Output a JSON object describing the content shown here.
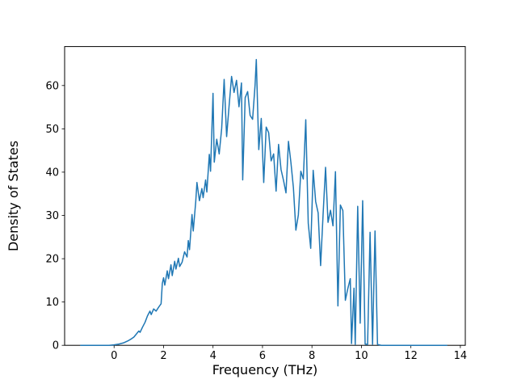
{
  "chart_data": {
    "type": "line",
    "title": "",
    "xlabel": "Frequency (THz)",
    "ylabel": "Density of States",
    "xlim": [
      -2.0,
      14.2
    ],
    "ylim": [
      0,
      69
    ],
    "xticks": [
      0,
      2,
      4,
      6,
      8,
      10,
      12,
      14
    ],
    "yticks": [
      0,
      10,
      20,
      30,
      40,
      50,
      60
    ],
    "grid": false,
    "legend": "none",
    "line_color": "#1f77b4",
    "axes_color": "#000000",
    "background_color": "#ffffff",
    "points": [
      [
        -1.35,
        0
      ],
      [
        -1.0,
        0
      ],
      [
        -0.6,
        0
      ],
      [
        -0.2,
        0
      ],
      [
        0.0,
        0.1
      ],
      [
        0.2,
        0.3
      ],
      [
        0.4,
        0.6
      ],
      [
        0.55,
        1.0
      ],
      [
        0.7,
        1.5
      ],
      [
        0.8,
        1.9
      ],
      [
        0.9,
        2.6
      ],
      [
        1.0,
        3.3
      ],
      [
        1.05,
        3.0
      ],
      [
        1.15,
        4.2
      ],
      [
        1.25,
        5.3
      ],
      [
        1.35,
        6.8
      ],
      [
        1.45,
        7.9
      ],
      [
        1.5,
        7.1
      ],
      [
        1.6,
        8.4
      ],
      [
        1.7,
        7.9
      ],
      [
        1.8,
        8.8
      ],
      [
        1.9,
        9.6
      ],
      [
        1.95,
        14.3
      ],
      [
        2.0,
        15.6
      ],
      [
        2.05,
        13.9
      ],
      [
        2.15,
        17.2
      ],
      [
        2.2,
        15.4
      ],
      [
        2.3,
        18.6
      ],
      [
        2.35,
        16.1
      ],
      [
        2.45,
        19.4
      ],
      [
        2.5,
        17.6
      ],
      [
        2.6,
        20.1
      ],
      [
        2.65,
        18.2
      ],
      [
        2.75,
        19.2
      ],
      [
        2.85,
        21.6
      ],
      [
        2.95,
        20.4
      ],
      [
        3.0,
        24.2
      ],
      [
        3.05,
        22.1
      ],
      [
        3.15,
        30.2
      ],
      [
        3.2,
        26.4
      ],
      [
        3.3,
        33.1
      ],
      [
        3.35,
        37.6
      ],
      [
        3.45,
        33.4
      ],
      [
        3.55,
        36.2
      ],
      [
        3.6,
        34.1
      ],
      [
        3.7,
        38.2
      ],
      [
        3.75,
        35.4
      ],
      [
        3.85,
        44.1
      ],
      [
        3.9,
        40.2
      ],
      [
        4.0,
        58.2
      ],
      [
        4.05,
        42.3
      ],
      [
        4.15,
        47.6
      ],
      [
        4.25,
        44.2
      ],
      [
        4.35,
        50.1
      ],
      [
        4.45,
        61.4
      ],
      [
        4.55,
        48.2
      ],
      [
        4.65,
        55.3
      ],
      [
        4.75,
        62.1
      ],
      [
        4.85,
        58.4
      ],
      [
        4.95,
        61.2
      ],
      [
        5.05,
        55.1
      ],
      [
        5.15,
        60.6
      ],
      [
        5.2,
        38.2
      ],
      [
        5.3,
        57.2
      ],
      [
        5.4,
        58.6
      ],
      [
        5.5,
        53.1
      ],
      [
        5.6,
        52.2
      ],
      [
        5.7,
        60.1
      ],
      [
        5.75,
        66.0
      ],
      [
        5.85,
        45.2
      ],
      [
        5.95,
        52.4
      ],
      [
        6.05,
        37.6
      ],
      [
        6.15,
        50.4
      ],
      [
        6.25,
        49.1
      ],
      [
        6.35,
        42.6
      ],
      [
        6.45,
        44.2
      ],
      [
        6.55,
        35.6
      ],
      [
        6.65,
        46.4
      ],
      [
        6.75,
        40.6
      ],
      [
        6.85,
        38.1
      ],
      [
        6.95,
        35.2
      ],
      [
        7.05,
        47.1
      ],
      [
        7.15,
        42.2
      ],
      [
        7.25,
        36.4
      ],
      [
        7.35,
        26.6
      ],
      [
        7.45,
        30.1
      ],
      [
        7.55,
        40.2
      ],
      [
        7.65,
        38.4
      ],
      [
        7.75,
        52.1
      ],
      [
        7.85,
        28.2
      ],
      [
        7.95,
        22.4
      ],
      [
        8.05,
        40.4
      ],
      [
        8.15,
        33.2
      ],
      [
        8.25,
        30.6
      ],
      [
        8.35,
        18.4
      ],
      [
        8.45,
        30.2
      ],
      [
        8.55,
        41.1
      ],
      [
        8.65,
        28.4
      ],
      [
        8.75,
        31.2
      ],
      [
        8.85,
        27.6
      ],
      [
        8.95,
        40.1
      ],
      [
        9.05,
        9.1
      ],
      [
        9.15,
        32.4
      ],
      [
        9.25,
        31.1
      ],
      [
        9.35,
        10.4
      ],
      [
        9.45,
        13.1
      ],
      [
        9.55,
        15.4
      ],
      [
        9.6,
        0.4
      ],
      [
        9.7,
        13.2
      ],
      [
        9.75,
        0.2
      ],
      [
        9.85,
        32.1
      ],
      [
        9.95,
        5.1
      ],
      [
        10.05,
        33.4
      ],
      [
        10.15,
        0.3
      ],
      [
        10.25,
        0.2
      ],
      [
        10.35,
        26.1
      ],
      [
        10.45,
        0.2
      ],
      [
        10.55,
        26.4
      ],
      [
        10.65,
        0.2
      ],
      [
        10.8,
        0.0
      ],
      [
        11.2,
        0.0
      ],
      [
        11.6,
        0.0
      ],
      [
        12.0,
        0.0
      ],
      [
        12.4,
        0.0
      ],
      [
        12.8,
        0.0
      ],
      [
        13.2,
        0.0
      ],
      [
        13.45,
        0.0
      ]
    ]
  }
}
